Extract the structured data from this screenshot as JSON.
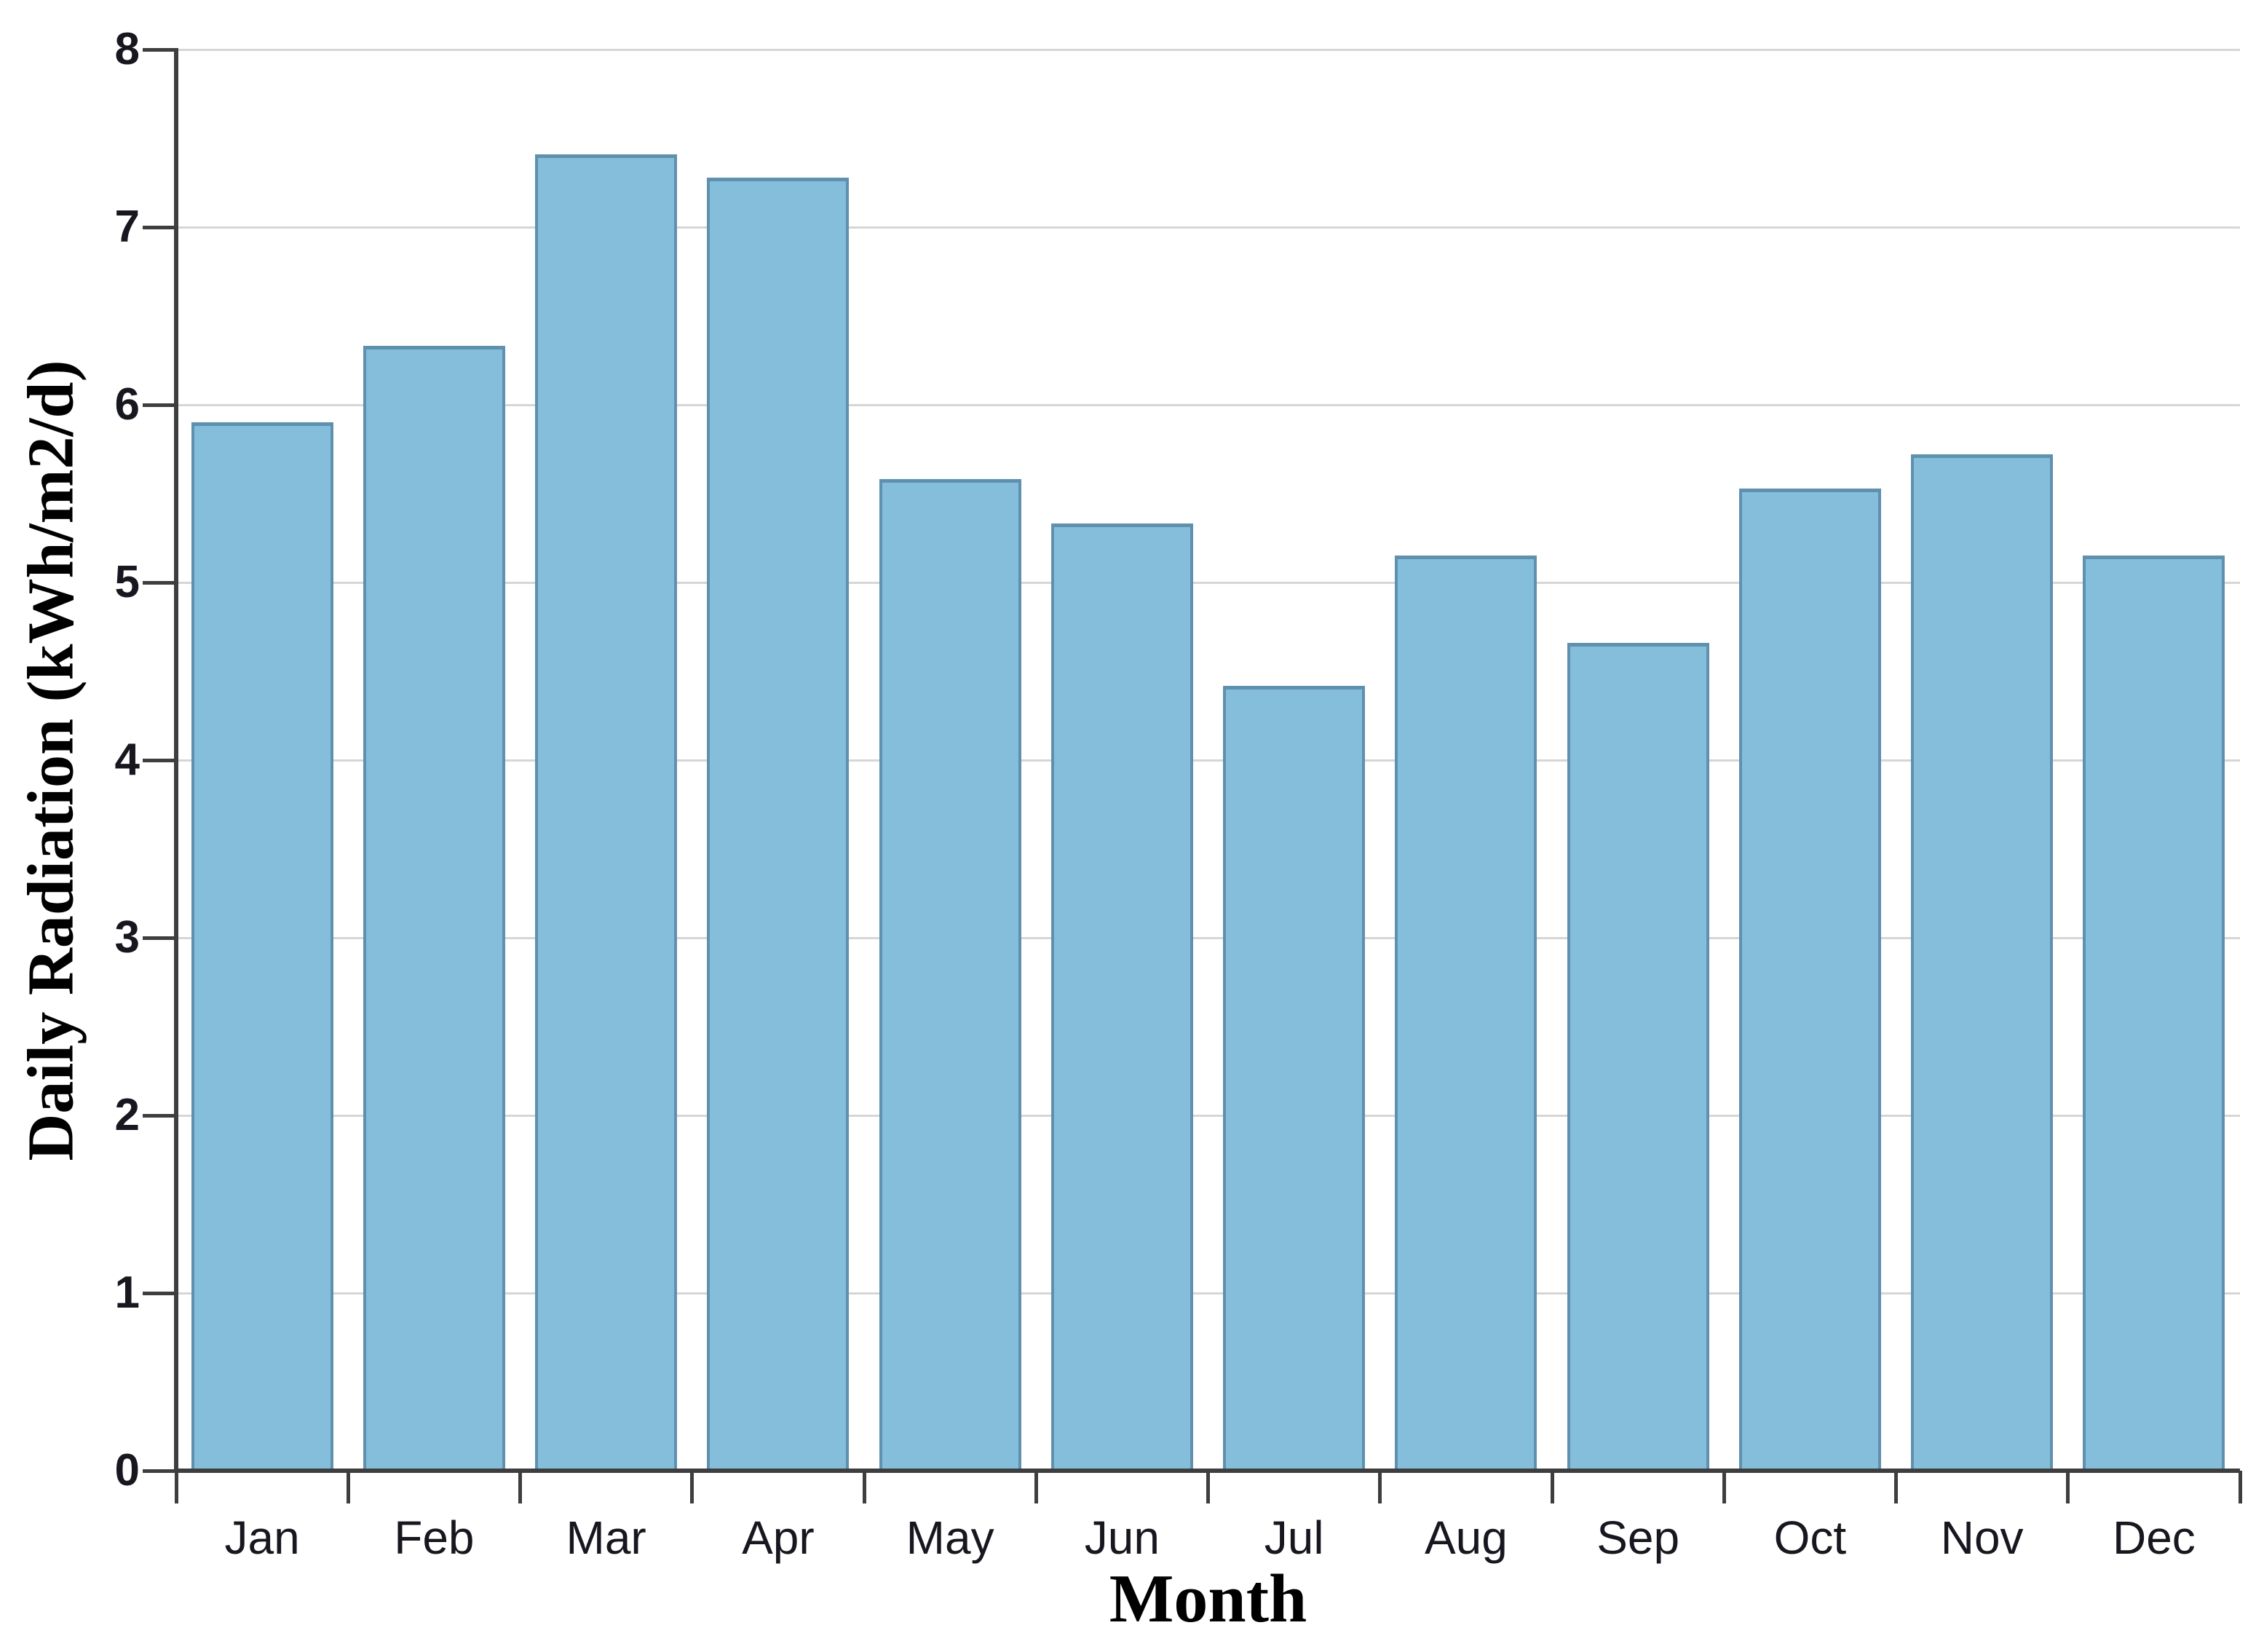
{
  "chart_data": {
    "type": "bar",
    "title": "",
    "categories": [
      "Jan",
      "Feb",
      "Mar",
      "Apr",
      "May",
      "Jun",
      "Jul",
      "Aug",
      "Sep",
      "Oct",
      "Nov",
      "Dec"
    ],
    "values": [
      5.9,
      6.33,
      7.41,
      7.28,
      5.58,
      5.33,
      4.42,
      5.15,
      4.66,
      5.53,
      5.72,
      5.15
    ],
    "xlabel": "Month",
    "ylabel": "Daily Radiation (kWh/m2/d)",
    "ylim": [
      0,
      8
    ],
    "yticks": [
      0,
      1,
      2,
      3,
      4,
      5,
      6,
      7,
      8
    ],
    "grid": true,
    "legend": "none",
    "bar_color": "#85BEDA",
    "bar_edge_color": "#5F91AF",
    "gridline_color": "#D6D6D6",
    "axis_color": "#3E3E3E",
    "tick_label_color": "#17171F"
  }
}
